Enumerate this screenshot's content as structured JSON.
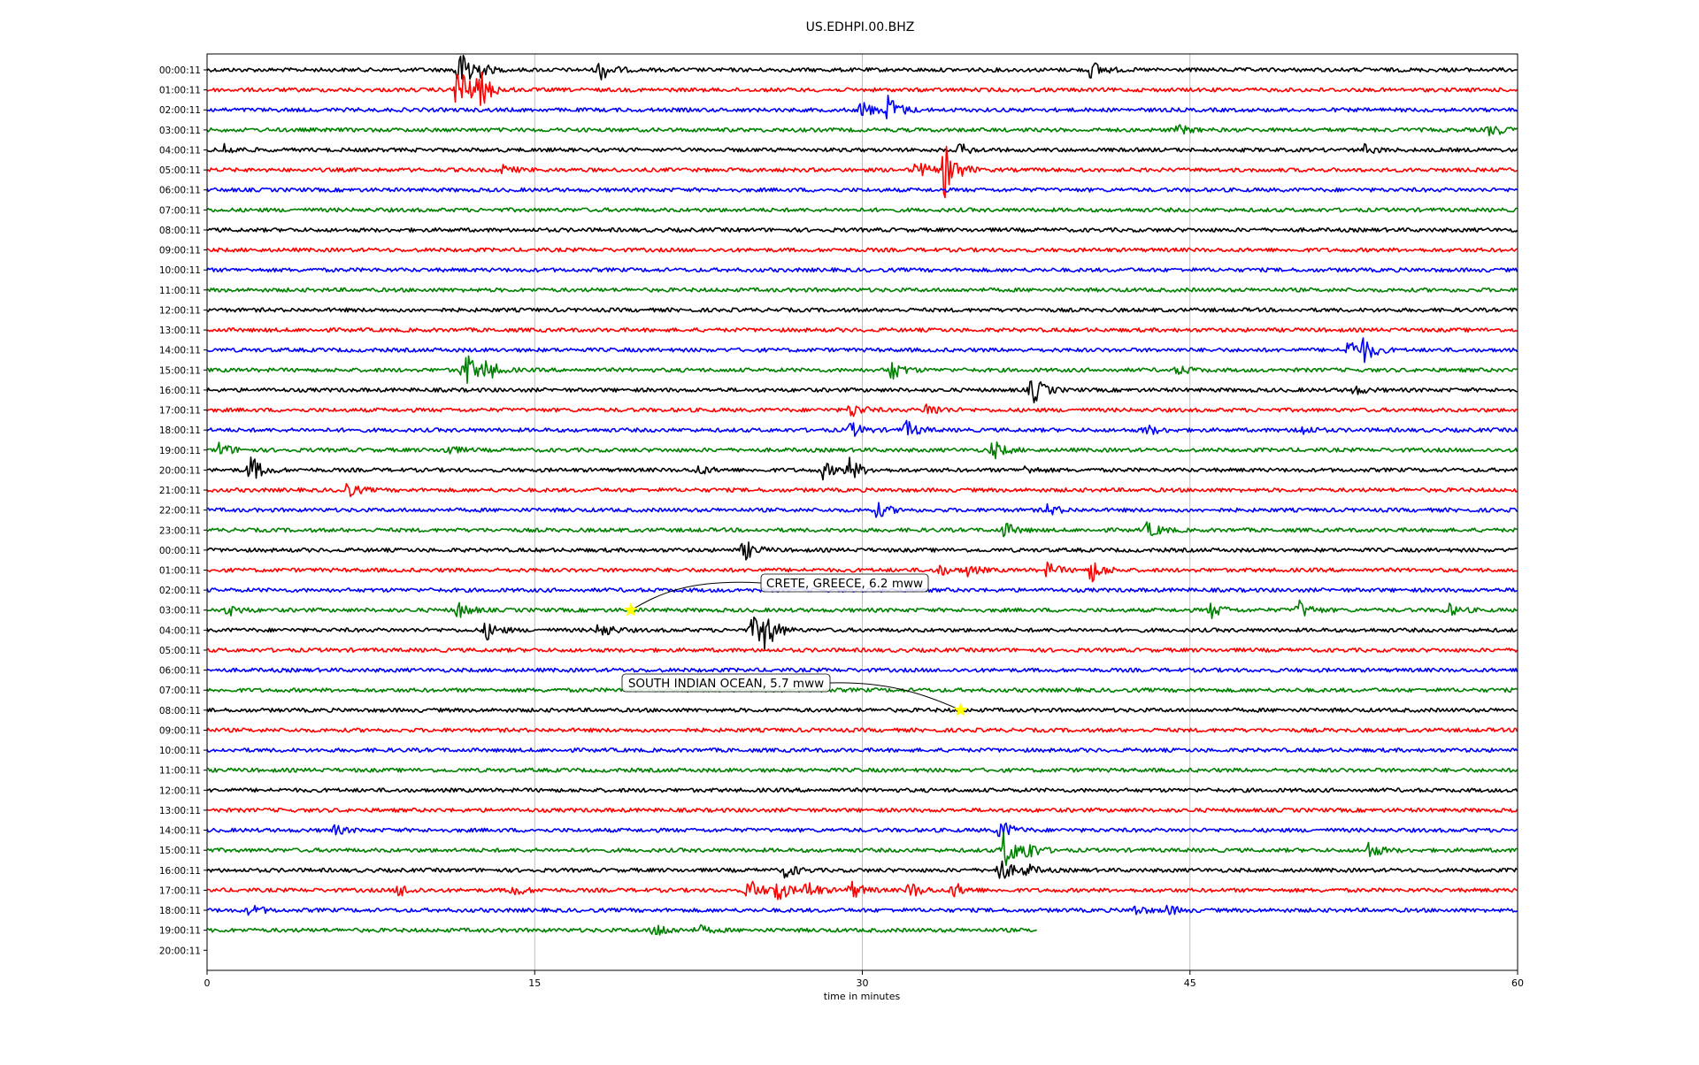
{
  "chart_data": {
    "type": "line",
    "title": "US.EDHPI.00.BHZ",
    "xlabel": "time in minutes",
    "ylabel": "",
    "xlim": [
      0,
      60
    ],
    "x_ticks": [
      "0",
      "15",
      "30",
      "45",
      "60"
    ],
    "grid": "vertical lines at 15, 30, 45",
    "row_labels": [
      "00:00:11",
      "01:00:11",
      "02:00:11",
      "03:00:11",
      "04:00:11",
      "05:00:11",
      "06:00:11",
      "07:00:11",
      "08:00:11",
      "09:00:11",
      "10:00:11",
      "11:00:11",
      "12:00:11",
      "13:00:11",
      "14:00:11",
      "15:00:11",
      "16:00:11",
      "17:00:11",
      "18:00:11",
      "19:00:11",
      "20:00:11",
      "21:00:11",
      "22:00:11",
      "23:00:11",
      "00:00:11",
      "01:00:11",
      "02:00:11",
      "03:00:11",
      "04:00:11",
      "05:00:11",
      "06:00:11",
      "07:00:11",
      "08:00:11",
      "09:00:11",
      "10:00:11",
      "11:00:11",
      "12:00:11",
      "13:00:11",
      "14:00:11",
      "15:00:11",
      "16:00:11",
      "17:00:11",
      "18:00:11",
      "19:00:11",
      "20:00:11"
    ],
    "trace_colors": [
      "#000000",
      "#ff0000",
      "#0000ff",
      "#008000"
    ],
    "last_row_end_minute": 38,
    "bursts": [
      {
        "row": 0,
        "t": 11.5,
        "amp": 2.4
      },
      {
        "row": 0,
        "t": 12.0,
        "amp": 1.8
      },
      {
        "row": 0,
        "t": 18.0,
        "amp": 1.2
      },
      {
        "row": 0,
        "t": 40.5,
        "amp": 1.0
      },
      {
        "row": 1,
        "t": 11.5,
        "amp": 3.2
      },
      {
        "row": 1,
        "t": 12.5,
        "amp": 1.8
      },
      {
        "row": 2,
        "t": 30.0,
        "amp": 1.0
      },
      {
        "row": 2,
        "t": 31.2,
        "amp": 1.6
      },
      {
        "row": 3,
        "t": 44.5,
        "amp": 0.5
      },
      {
        "row": 3,
        "t": 58.8,
        "amp": 0.7
      },
      {
        "row": 4,
        "t": 0.8,
        "amp": 0.6
      },
      {
        "row": 4,
        "t": 34.5,
        "amp": 0.6
      },
      {
        "row": 4,
        "t": 53.0,
        "amp": 0.5
      },
      {
        "row": 5,
        "t": 13.5,
        "amp": 0.5
      },
      {
        "row": 5,
        "t": 32.5,
        "amp": 1.0
      },
      {
        "row": 5,
        "t": 33.8,
        "amp": 3.0
      },
      {
        "row": 14,
        "t": 52.3,
        "amp": 1.2
      },
      {
        "row": 14,
        "t": 53.0,
        "amp": 1.1
      },
      {
        "row": 15,
        "t": 11.8,
        "amp": 2.2
      },
      {
        "row": 15,
        "t": 12.8,
        "amp": 1.0
      },
      {
        "row": 15,
        "t": 31.3,
        "amp": 1.2
      },
      {
        "row": 15,
        "t": 44.5,
        "amp": 0.5
      },
      {
        "row": 16,
        "t": 37.8,
        "amp": 1.6
      },
      {
        "row": 16,
        "t": 52.5,
        "amp": 0.5
      },
      {
        "row": 17,
        "t": 29.5,
        "amp": 0.8
      },
      {
        "row": 17,
        "t": 33.0,
        "amp": 0.8
      },
      {
        "row": 18,
        "t": 29.5,
        "amp": 0.8
      },
      {
        "row": 18,
        "t": 32.0,
        "amp": 1.0
      },
      {
        "row": 18,
        "t": 43.0,
        "amp": 0.6
      },
      {
        "row": 18,
        "t": 50.0,
        "amp": 0.6
      },
      {
        "row": 19,
        "t": 0.6,
        "amp": 0.8
      },
      {
        "row": 19,
        "t": 11.0,
        "amp": 0.5
      },
      {
        "row": 19,
        "t": 36.0,
        "amp": 1.0
      },
      {
        "row": 20,
        "t": 2.0,
        "amp": 1.6
      },
      {
        "row": 20,
        "t": 22.5,
        "amp": 0.5
      },
      {
        "row": 20,
        "t": 28.2,
        "amp": 0.9
      },
      {
        "row": 20,
        "t": 29.4,
        "amp": 1.3
      },
      {
        "row": 20,
        "t": 37.5,
        "amp": 0.4
      },
      {
        "row": 21,
        "t": 6.3,
        "amp": 1.0
      },
      {
        "row": 22,
        "t": 30.7,
        "amp": 0.8
      },
      {
        "row": 22,
        "t": 38.5,
        "amp": 0.6
      },
      {
        "row": 23,
        "t": 36.5,
        "amp": 0.8
      },
      {
        "row": 23,
        "t": 43.1,
        "amp": 0.9
      },
      {
        "row": 24,
        "t": 24.6,
        "amp": 1.1
      },
      {
        "row": 25,
        "t": 33.5,
        "amp": 0.6
      },
      {
        "row": 25,
        "t": 34.8,
        "amp": 0.6
      },
      {
        "row": 25,
        "t": 38.5,
        "amp": 0.8
      },
      {
        "row": 25,
        "t": 40.5,
        "amp": 1.3
      },
      {
        "row": 27,
        "t": 1.0,
        "amp": 0.6
      },
      {
        "row": 27,
        "t": 11.5,
        "amp": 0.9
      },
      {
        "row": 27,
        "t": 46.0,
        "amp": 0.8
      },
      {
        "row": 27,
        "t": 50.0,
        "amp": 1.0
      },
      {
        "row": 27,
        "t": 56.8,
        "amp": 0.7
      },
      {
        "row": 28,
        "t": 12.8,
        "amp": 1.0
      },
      {
        "row": 28,
        "t": 18.0,
        "amp": 0.9
      },
      {
        "row": 28,
        "t": 25.0,
        "amp": 1.4
      },
      {
        "row": 28,
        "t": 25.5,
        "amp": 2.2
      },
      {
        "row": 38,
        "t": 5.8,
        "amp": 0.5
      },
      {
        "row": 38,
        "t": 36.3,
        "amp": 1.2
      },
      {
        "row": 39,
        "t": 36.5,
        "amp": 2.2
      },
      {
        "row": 39,
        "t": 37.5,
        "amp": 1.0
      },
      {
        "row": 39,
        "t": 53.2,
        "amp": 0.9
      },
      {
        "row": 40,
        "t": 26.5,
        "amp": 0.8
      },
      {
        "row": 40,
        "t": 36.3,
        "amp": 1.4
      },
      {
        "row": 40,
        "t": 37.5,
        "amp": 0.6
      },
      {
        "row": 41,
        "t": 8.8,
        "amp": 0.7
      },
      {
        "row": 41,
        "t": 14.0,
        "amp": 0.6
      },
      {
        "row": 41,
        "t": 24.8,
        "amp": 1.3
      },
      {
        "row": 41,
        "t": 26.0,
        "amp": 1.6
      },
      {
        "row": 41,
        "t": 27.5,
        "amp": 1.0
      },
      {
        "row": 41,
        "t": 29.5,
        "amp": 1.0
      },
      {
        "row": 41,
        "t": 32.2,
        "amp": 0.9
      },
      {
        "row": 41,
        "t": 34.2,
        "amp": 0.8
      },
      {
        "row": 42,
        "t": 2.0,
        "amp": 0.6
      },
      {
        "row": 42,
        "t": 42.5,
        "amp": 0.5
      },
      {
        "row": 42,
        "t": 44.0,
        "amp": 0.5
      },
      {
        "row": 43,
        "t": 20.5,
        "amp": 0.9
      },
      {
        "row": 43,
        "t": 22.5,
        "amp": 0.5
      }
    ],
    "annotations": [
      {
        "text": "CRETE, GREECE, 6.2 mww",
        "row": 27,
        "minute": 19.4
      },
      {
        "text": "SOUTH INDIAN OCEAN, 5.7 mww",
        "row": 32,
        "minute": 34.5
      }
    ],
    "marker_color": "#ffff00"
  }
}
